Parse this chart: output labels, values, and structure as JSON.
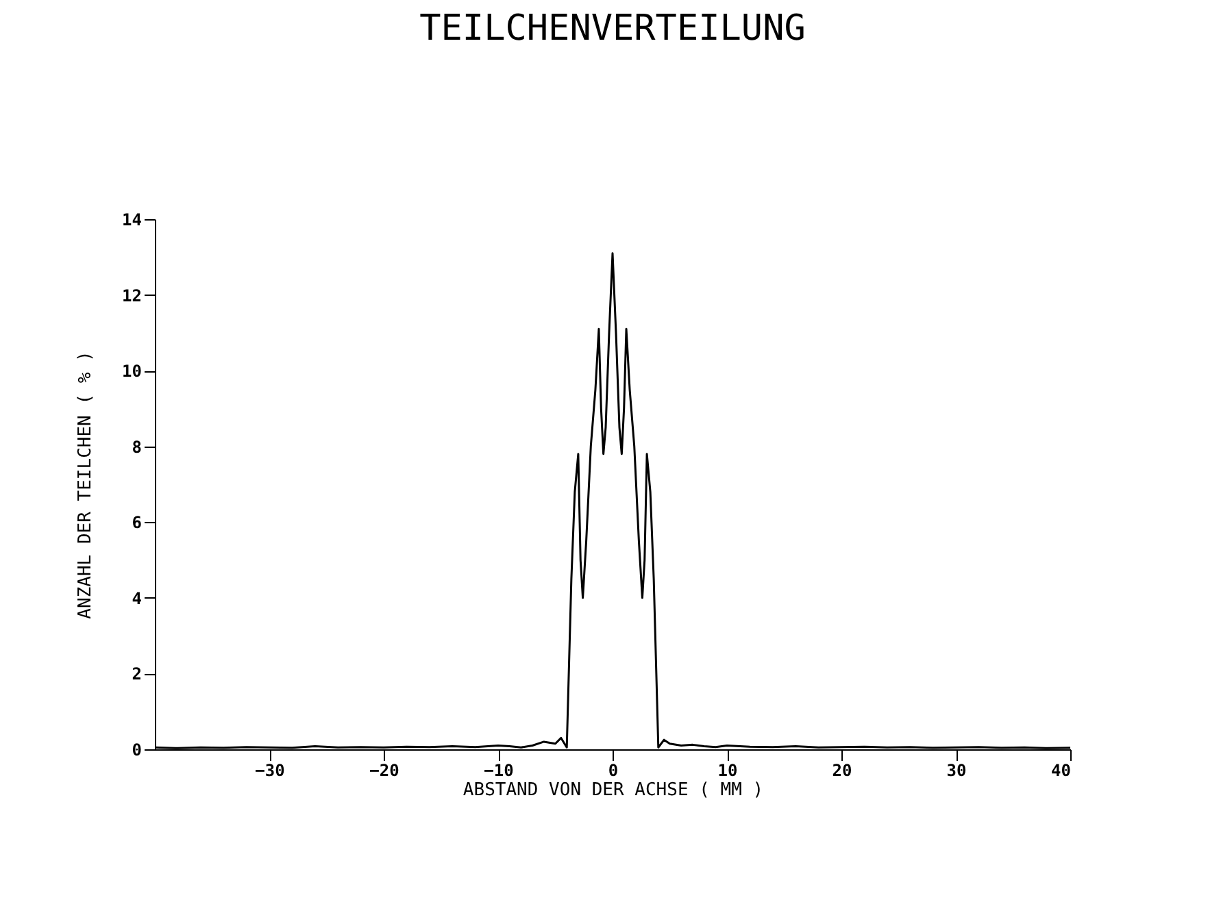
{
  "chart_data": {
    "type": "line",
    "title": "TEILCHENVERTEILUNG",
    "xlabel": "ABSTAND VON DER ACHSE ( MM )",
    "ylabel": "ANZAHL DER TEILCHEN ( % )",
    "x": [
      -40,
      -38,
      -36,
      -34,
      -32,
      -30,
      -28,
      -26,
      -24,
      -22,
      -20,
      -18,
      -16,
      -14,
      -12,
      -10,
      -9,
      -8,
      -7,
      -6,
      -5,
      -4.5,
      -4,
      -3.6,
      -3.3,
      -3.0,
      -2.8,
      -2.6,
      -2.3,
      -1.9,
      -1.5,
      -1.2,
      -1.0,
      -0.8,
      -0.6,
      -0.3,
      0,
      0.3,
      0.6,
      0.8,
      1.0,
      1.2,
      1.5,
      1.9,
      2.3,
      2.6,
      2.8,
      3.0,
      3.3,
      3.6,
      4,
      4.5,
      5,
      6,
      7,
      8,
      9,
      10,
      12,
      14,
      16,
      18,
      20,
      22,
      24,
      26,
      28,
      30,
      32,
      34,
      36,
      38,
      40
    ],
    "series": [
      {
        "color": "#000000",
        "values": [
          0.05,
          0.03,
          0.05,
          0.04,
          0.06,
          0.05,
          0.04,
          0.08,
          0.05,
          0.06,
          0.05,
          0.07,
          0.06,
          0.08,
          0.06,
          0.1,
          0.08,
          0.05,
          0.1,
          0.2,
          0.15,
          0.3,
          0.05,
          4.5,
          6.8,
          7.8,
          5.0,
          4.0,
          5.5,
          8.0,
          9.5,
          11.1,
          9.0,
          7.8,
          8.5,
          11.0,
          13.1,
          11.0,
          8.5,
          7.8,
          9.0,
          11.1,
          9.5,
          8.0,
          5.5,
          4.0,
          5.0,
          7.8,
          6.8,
          4.5,
          0.05,
          0.25,
          0.15,
          0.1,
          0.12,
          0.08,
          0.06,
          0.1,
          0.07,
          0.06,
          0.08,
          0.05,
          0.06,
          0.07,
          0.05,
          0.06,
          0.04,
          0.05,
          0.06,
          0.04,
          0.05,
          0.03,
          0.04
        ]
      }
    ],
    "xlim": [
      -40,
      40
    ],
    "xticks": [
      -30,
      -20,
      -10,
      0,
      10,
      20,
      30,
      40
    ],
    "ylim": [
      0,
      14
    ],
    "yticks": [
      0,
      2,
      4,
      6,
      8,
      10,
      12,
      14
    ],
    "grid": false,
    "marker": "none",
    "line_style": "solid"
  }
}
